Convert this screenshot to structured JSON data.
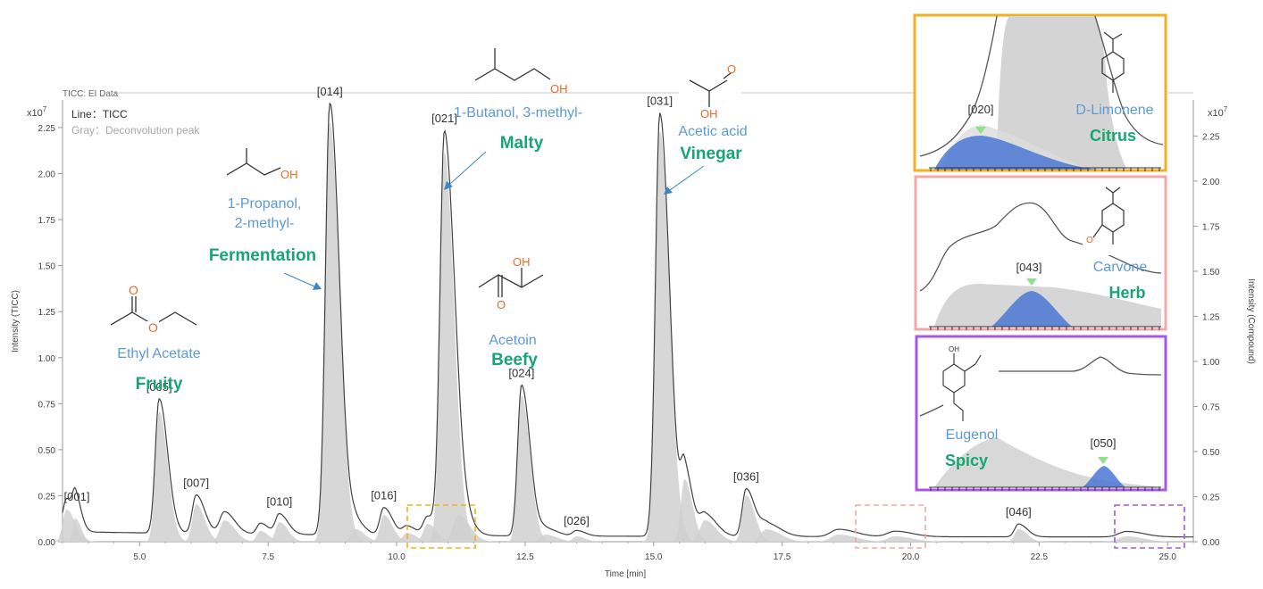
{
  "header": {
    "data_title": "TICC: EI Data",
    "legend_line": "Line：TICC",
    "legend_gray": "Gray：Deconvolution peak",
    "left_exp": "x10",
    "left_exp_sup": "7",
    "right_exp": "x10",
    "right_exp_sup": "7"
  },
  "chart_data": {
    "type": "line",
    "xlabel": "Time [min]",
    "ylabel": "Intensity (TICC)",
    "ylabel_right": "Intensity (Compound)",
    "xlim": [
      3.5,
      25.5
    ],
    "ylim": [
      0,
      2.4
    ],
    "y_unit_multiplier": "x10^7",
    "x_ticks": [
      "5.0",
      "7.5",
      "10.0",
      "12.5",
      "15.0",
      "17.5",
      "20.0",
      "22.5",
      "25.0"
    ],
    "y_ticks": [
      "0.00",
      "0.25",
      "0.50",
      "0.75",
      "1.00",
      "1.25",
      "1.50",
      "1.75",
      "2.00",
      "2.25"
    ],
    "y_ticks_right": [
      "0.00",
      "0.25",
      "0.50",
      "0.75",
      "1.00",
      "1.25",
      "1.50",
      "1.75",
      "2.00",
      "2.25"
    ],
    "grid": false,
    "peaks": [
      {
        "label": "[001]",
        "rt": 3.58,
        "height": 0.18
      },
      {
        "label": "[005]",
        "rt": 5.38,
        "height": 0.73
      },
      {
        "label": "[007]",
        "rt": 6.1,
        "height": 0.21
      },
      {
        "label": "[010]",
        "rt": 7.72,
        "height": 0.11
      },
      {
        "label": "[014]",
        "rt": 8.7,
        "height": 2.35
      },
      {
        "label": "[016]",
        "rt": 9.75,
        "height": 0.15
      },
      {
        "label": "[021]",
        "rt": 10.93,
        "height": 2.18
      },
      {
        "label": "[024]",
        "rt": 12.43,
        "height": 0.82
      },
      {
        "label": "[026]",
        "rt": 13.5,
        "height": 0.03
      },
      {
        "label": "[031]",
        "rt": 15.12,
        "height": 2.3
      },
      {
        "label": "[036]",
        "rt": 16.8,
        "height": 0.26
      },
      {
        "label": "[046]",
        "rt": 22.1,
        "height": 0.07
      }
    ],
    "compound_annotations": [
      {
        "name": "Ethyl Acetate",
        "odor": "Fruity"
      },
      {
        "name": "1-Propanol,\n2-methyl-",
        "odor": "Fermentation"
      },
      {
        "name": "1-Butanol, 3-methyl-",
        "odor": "Malty"
      },
      {
        "name": "Acetoin",
        "odor": "Beefy"
      },
      {
        "name": "Acetic acid",
        "odor": "Vinegar"
      }
    ],
    "zoom_insets": [
      {
        "peak": "[020]",
        "compound": "D-Limonene",
        "odor": "Citrus",
        "color": "#f2b01e",
        "x_range": [
          10.2,
          11.4
        ]
      },
      {
        "peak": "[043]",
        "compound": "Carvone",
        "odor": "Herb",
        "color": "#f4a7aa",
        "x_range": [
          19.0,
          20.3
        ]
      },
      {
        "peak": "[050]",
        "compound": "Eugenol",
        "odor": "Spicy",
        "color": "#a855e8",
        "x_range": [
          24.0,
          25.4
        ]
      }
    ]
  },
  "colors": {
    "compound_name": "#5b9bd5",
    "odor": "#17a673",
    "atom_O": "#f06a28",
    "trace": "#404040",
    "deconv": "#d0d0d0",
    "blue_peak": "#4a77d4",
    "marker": "#8fe08a",
    "arrow": "#3a86c8"
  }
}
